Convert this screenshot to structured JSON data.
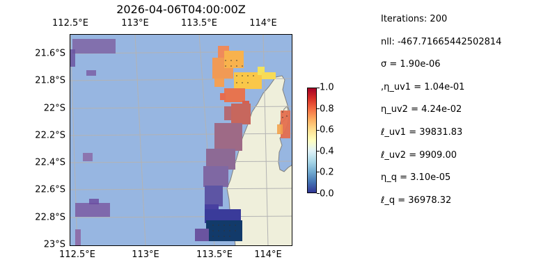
{
  "map": {
    "title": "2026-04-06T04:00:00Z",
    "lon_ticks": [
      "112.5°E",
      "113°E",
      "113.5°E",
      "114°E"
    ],
    "lat_ticks": [
      "21.6°S",
      "21.8°S",
      "22°S",
      "22.2°S",
      "22.4°S",
      "22.6°S",
      "22.8°S",
      "23°S"
    ],
    "colors": {
      "ocean": "#97b6e1",
      "land": "#efefdb",
      "coastline": "#7f7f7f",
      "gridline": "#b3b3b3"
    }
  },
  "colorbar": {
    "ticks": [
      "0.0",
      "0.2",
      "0.4",
      "0.6",
      "0.8",
      "1.0"
    ],
    "cmap": "RdYlBu_r"
  },
  "stats": [
    "Iterations: 200",
    "nll: -467.71665442502814",
    "σ = 1.90e-06",
    ",η_uv1 = 1.04e-01",
    "η_uv2 = 4.24e-02",
    "ℓ_uv1 = 39831.83",
    "ℓ_uv2 = 9909.00",
    "η_q = 3.10e-05",
    "ℓ_q = 36978.32"
  ]
}
